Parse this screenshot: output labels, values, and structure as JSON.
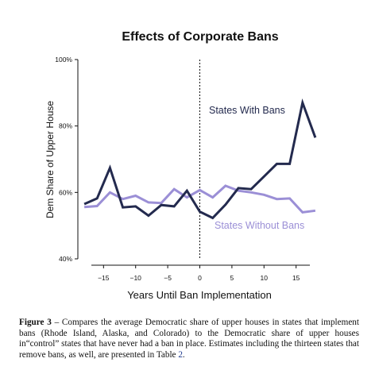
{
  "chart_data": {
    "type": "line",
    "title": "Effects of Corporate Bans",
    "xlabel": "Years Until Ban Implementation",
    "ylabel": "Dem Share of Upper House",
    "xlim": [
      -19,
      19
    ],
    "ylim": [
      40,
      100
    ],
    "xticks": [
      -15,
      -10,
      -5,
      0,
      5,
      10,
      15
    ],
    "xtick_labels": [
      "−15",
      "−10",
      "−5",
      "0",
      "5",
      "10",
      "15"
    ],
    "yticks": [
      40,
      60,
      80,
      100
    ],
    "ytick_labels": [
      "40%",
      "60%",
      "80%",
      "100%"
    ],
    "vline_x": 0,
    "grid": false,
    "colors": {
      "bans": "#232a4e",
      "without": "#9b8fd6"
    },
    "series": [
      {
        "name": "States With Bans",
        "x": [
          -18,
          -16,
          -14,
          -12,
          -10,
          -8,
          -6,
          -4,
          -2,
          0,
          2,
          4,
          6,
          8,
          10,
          12,
          14,
          16,
          18
        ],
        "y": [
          56.5,
          58.2,
          67.4,
          55.5,
          55.8,
          53,
          56.2,
          55.8,
          60.5,
          54.2,
          52.3,
          56.3,
          61.3,
          61,
          64.8,
          68.6,
          68.6,
          87,
          76.5
        ]
      },
      {
        "name": "States Without Bans",
        "x": [
          -18,
          -16,
          -14,
          -12,
          -10,
          -8,
          -6,
          -4,
          -2,
          0,
          2,
          4,
          6,
          8,
          10,
          12,
          14,
          16,
          18
        ],
        "y": [
          55.6,
          55.9,
          60,
          58,
          59,
          57,
          56.8,
          61,
          58.5,
          60.7,
          58.5,
          62,
          60.5,
          60,
          59.3,
          58,
          58.2,
          54,
          54.5
        ]
      }
    ]
  },
  "caption": {
    "label": "Figure 3",
    "text_before_ref": " – Compares the average Democratic share of upper houses in states that implement bans (Rhode Island, Alaska, and Colorado) to the Democratic share of upper houses in“control” states that have never had a ban in place.  Estimates including the thirteen states that remove bans, as well, are presented in Table ",
    "ref": "2",
    "text_after_ref": "."
  }
}
